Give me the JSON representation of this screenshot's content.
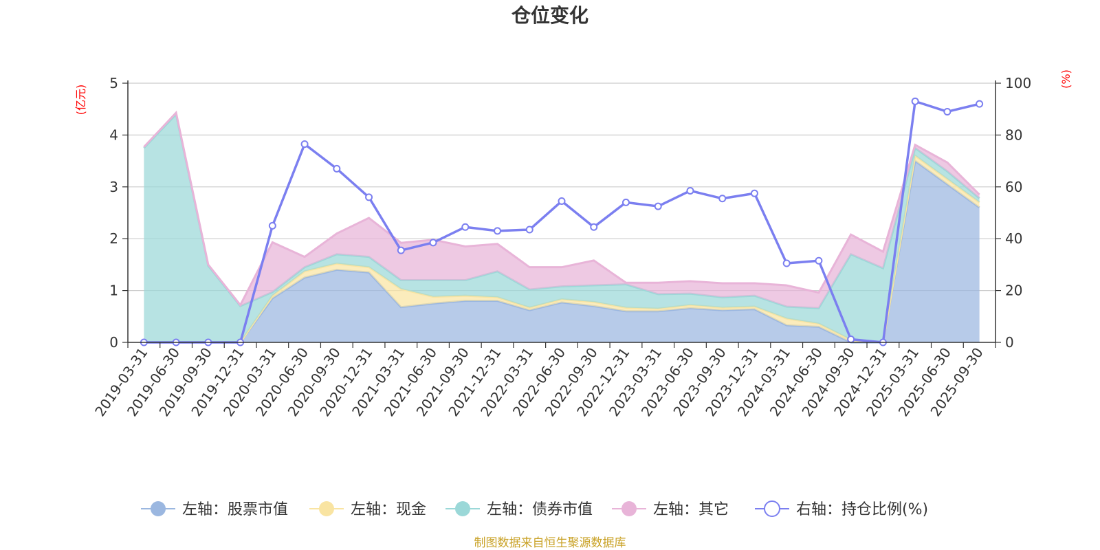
{
  "chart_data": {
    "type": "area",
    "title": "仓位变化",
    "left_unit": "(亿元)",
    "right_unit": "(%)",
    "left_ylim": [
      0,
      5
    ],
    "left_ticks": [
      "0",
      "1",
      "2",
      "3",
      "4",
      "5"
    ],
    "right_ylim": [
      0,
      100
    ],
    "right_ticks": [
      "0",
      "20",
      "40",
      "60",
      "80",
      "100"
    ],
    "grid": true,
    "legend_position": "bottom",
    "categories": [
      "2019-03-31",
      "2019-06-30",
      "2019-09-30",
      "2019-12-31",
      "2020-03-31",
      "2020-06-30",
      "2020-09-30",
      "2020-12-31",
      "2021-03-31",
      "2021-06-30",
      "2021-09-30",
      "2021-12-31",
      "2022-03-31",
      "2022-06-30",
      "2022-09-30",
      "2022-12-31",
      "2023-03-31",
      "2023-06-30",
      "2023-09-30",
      "2023-12-31",
      "2024-03-31",
      "2024-06-30",
      "2024-09-30",
      "2024-12-31",
      "2025-03-31",
      "2025-06-30",
      "2025-09-30"
    ],
    "series": [
      {
        "name": "左轴：股票市值",
        "axis": "left",
        "stacked": true,
        "color": "#9bb7e0",
        "values": [
          0,
          0,
          0,
          0,
          0.85,
          1.25,
          1.4,
          1.35,
          0.68,
          0.75,
          0.8,
          0.8,
          0.62,
          0.77,
          0.7,
          0.6,
          0.6,
          0.66,
          0.62,
          0.64,
          0.33,
          0.3,
          0,
          0,
          3.5,
          3.05,
          2.6
        ]
      },
      {
        "name": "左轴：现金",
        "axis": "left",
        "stacked": true,
        "color": "#f9e4a2",
        "values": [
          0,
          0,
          0,
          0,
          0.05,
          0.12,
          0.12,
          0.1,
          0.35,
          0.13,
          0.1,
          0.07,
          0.05,
          0.06,
          0.08,
          0.07,
          0.05,
          0.06,
          0.05,
          0.05,
          0.13,
          0.06,
          0.05,
          0,
          0.1,
          0.1,
          0.1
        ]
      },
      {
        "name": "左轴：债券市值",
        "axis": "left",
        "stacked": true,
        "color": "#9bd8d8",
        "values": [
          3.75,
          4.4,
          1.48,
          0.7,
          0.07,
          0.08,
          0.18,
          0.2,
          0.17,
          0.32,
          0.3,
          0.5,
          0.35,
          0.25,
          0.32,
          0.45,
          0.28,
          0.22,
          0.2,
          0.21,
          0.23,
          0.3,
          1.65,
          1.43,
          0.15,
          0.15,
          0.08
        ]
      },
      {
        "name": "左轴：其它",
        "axis": "left",
        "stacked": true,
        "color": "#e8b4d8",
        "values": [
          0.02,
          0.03,
          0.02,
          0.02,
          0.96,
          0.2,
          0.4,
          0.75,
          0.72,
          0.78,
          0.65,
          0.53,
          0.43,
          0.37,
          0.48,
          0.03,
          0.22,
          0.24,
          0.27,
          0.24,
          0.41,
          0.3,
          0.38,
          0.32,
          0.06,
          0.17,
          0.07
        ]
      },
      {
        "name": "右轴：持仓比例(%)",
        "axis": "right",
        "stacked": false,
        "color": "#7b7ff0",
        "values": [
          0,
          0,
          0,
          0,
          45,
          76.5,
          67,
          56,
          35.5,
          38.5,
          44.5,
          43,
          43.5,
          54.5,
          44.5,
          54,
          52.5,
          58.5,
          55.5,
          57.5,
          30.5,
          31.5,
          1.2,
          0,
          93,
          89,
          92
        ]
      }
    ],
    "footer": "制图数据来自恒生聚源数据库"
  }
}
